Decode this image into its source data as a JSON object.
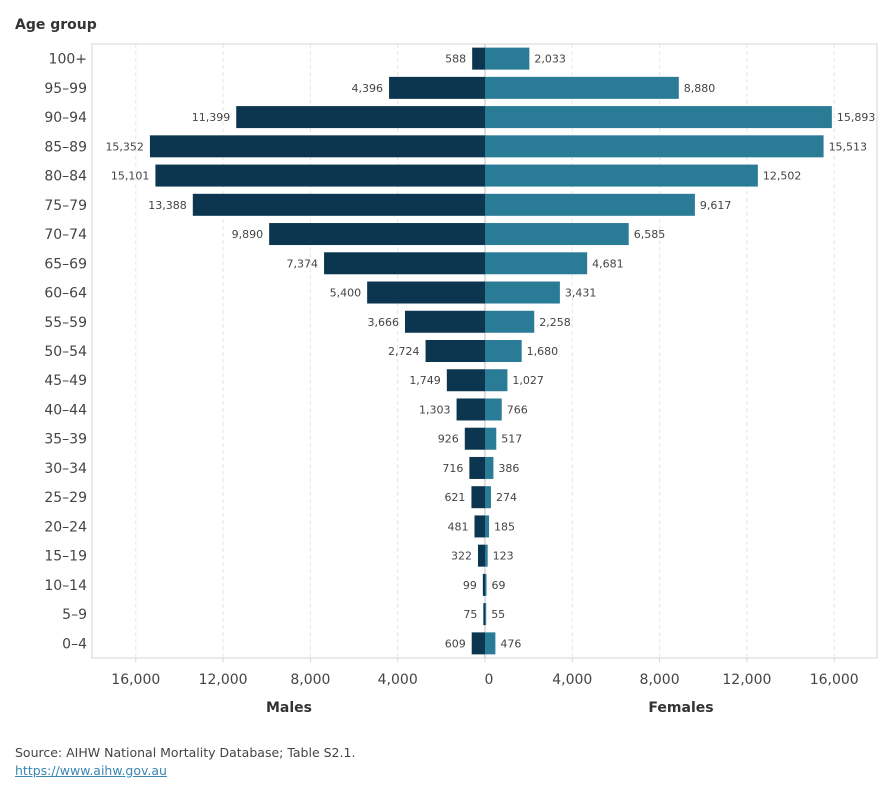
{
  "chart_data": {
    "type": "bar",
    "subtype": "population-pyramid",
    "title": "",
    "ylabel": "Age group",
    "categories": [
      "100+",
      "95–99",
      "90–94",
      "85–89",
      "80–84",
      "75–79",
      "70–74",
      "65–69",
      "60–64",
      "55–59",
      "50–54",
      "45–49",
      "40–44",
      "35–39",
      "30–34",
      "25–29",
      "20–24",
      "15–19",
      "10–14",
      "5–9",
      "0–4"
    ],
    "series": [
      {
        "name": "Males",
        "color": "#0c364f",
        "values": [
          588,
          4396,
          11399,
          15352,
          15101,
          13388,
          9890,
          7374,
          5400,
          3666,
          2724,
          1749,
          1303,
          926,
          716,
          621,
          481,
          322,
          99,
          75,
          609
        ],
        "labels": [
          "588",
          "4,396",
          "11,399",
          "15,352",
          "15,101",
          "13,388",
          "9,890",
          "7,374",
          "5,400",
          "3,666",
          "2,724",
          "1,749",
          "1,303",
          "926",
          "716",
          "621",
          "481",
          "322",
          "99",
          "75",
          "609"
        ]
      },
      {
        "name": "Females",
        "color": "#2a7c96",
        "values": [
          2033,
          8880,
          15893,
          15513,
          12502,
          9617,
          6585,
          4681,
          3431,
          2258,
          1680,
          1027,
          766,
          517,
          386,
          274,
          185,
          123,
          69,
          55,
          476
        ],
        "labels": [
          "2,033",
          "8,880",
          "15,893",
          "15,513",
          "12,502",
          "9,617",
          "6,585",
          "4,681",
          "3,431",
          "2,258",
          "1,680",
          "1,027",
          "766",
          "517",
          "386",
          "274",
          "185",
          "123",
          "69",
          "55",
          "476"
        ]
      }
    ],
    "x_axes": [
      {
        "side": "left",
        "label": "Males",
        "ticks": [
          16000,
          12000,
          8000,
          4000,
          0
        ],
        "tick_labels": [
          "16,000",
          "12,000",
          "8,000",
          "4,000",
          "0"
        ],
        "range": [
          0,
          18000
        ],
        "reversed": true
      },
      {
        "side": "right",
        "label": "Females",
        "ticks": [
          0,
          4000,
          8000,
          12000,
          16000
        ],
        "tick_labels": [
          "0",
          "4,000",
          "8,000",
          "12,000",
          "16,000"
        ],
        "range": [
          0,
          18000
        ]
      }
    ],
    "grid": true
  },
  "footer": {
    "source": "Source: AIHW National Mortality Database; Table S2.1.",
    "link": "https://www.aihw.gov.au"
  }
}
